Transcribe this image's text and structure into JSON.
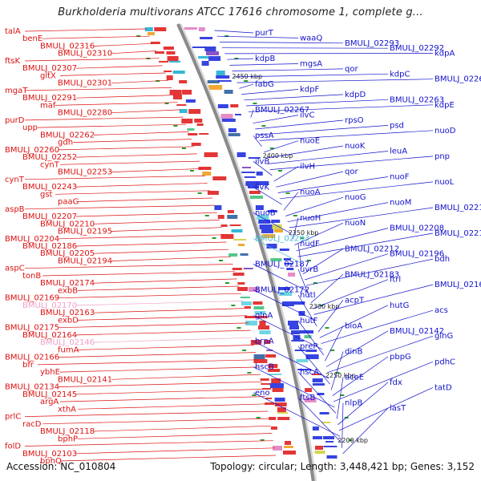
{
  "title": "Burkholderia multivorans ATCC 17616 chromosome 1, complete g...",
  "footer": {
    "accession": "Accession: NC_010804",
    "topology": "Topology: circular; Length: 3,448,421 bp; Genes: 3,152"
  },
  "colors": {
    "left_label": "#dd1111",
    "right_label": "#1111cc",
    "highlight_left": "#f0a0c8",
    "highlight_right": "#44bbdd",
    "backbone": "#8a8a8a",
    "tick": "#2a9a2a"
  },
  "kbp_labels": [
    "2450 kbp",
    "2400 kbp",
    "2350 kbp",
    "2300 kbp",
    "2250 kbp",
    "2200 kbp"
  ],
  "left_labels": [
    "talA",
    "benE",
    "BMULJ_02316",
    "BMULJ_02310",
    "ftsK",
    "BMULJ_02307",
    "gltX",
    "BMULJ_02301",
    "mgaT",
    "BMULJ_02291",
    "maf",
    "BMULJ_02280",
    "purD",
    "upp",
    "BMULJ_02262",
    "gdh",
    "BMULJ_02260",
    "BMULJ_02252",
    "cynT",
    "BMULJ_02253",
    "cynT",
    "BMULJ_02243",
    "gst",
    "paaG",
    "aspB",
    "BMULJ_02207",
    "BMULJ_02210",
    "BMULJ_02195",
    "BMULJ_02204",
    "BMULJ_02186",
    "BMULJ_02205",
    "BMULJ_02194",
    "aspC",
    "tonB",
    "BMULJ_02174",
    "exbB",
    "BMULJ_02169",
    "BMULJ_02170",
    "BMULJ_02163",
    "exbD",
    "BMULJ_02175",
    "BMULJ_02164",
    "BMULJ_02146",
    "fumA",
    "BMULJ_02166",
    "bfr",
    "ybhE",
    "BMULJ_02141",
    "BMULJ_02134",
    "BMULJ_02145",
    "argA",
    "xthA",
    "prlC",
    "racD",
    "BMULJ_02118",
    "bphP",
    "folD",
    "BMULJ_02103",
    "bphQ"
  ],
  "right_labels": [
    "purT",
    "waaQ",
    "BMULJ_02293",
    "BMULJ_02292",
    "kdpA",
    "kdpB",
    "mgsA",
    "qor",
    "kdpC",
    "BMULJ_02264",
    "fabG",
    "kdpF",
    "kdpD",
    "BMULJ_02263",
    "kdpE",
    "BMULJ_02267",
    "ilvC",
    "rpsO",
    "psd",
    "nuoD",
    "pssA",
    "nuoE",
    "nuoK",
    "leuA",
    "pnp",
    "ilvB",
    "ilvH",
    "qor",
    "nuoF",
    "nuoL",
    "ilvK",
    "nuoA",
    "nuoG",
    "nuoM",
    "BMULJ_02218",
    "nuoB",
    "nuoH",
    "nuoN",
    "BMULJ_02208",
    "BMULJ_02219",
    "BMULJ_02203",
    "nudF",
    "BMULJ_02212",
    "BMULJ_02196",
    "bdh",
    "BMULJ_02187",
    "uvrB",
    "BMULJ_02183",
    "ftrl",
    "BMULJ_02168",
    "BMULJ_02172",
    "hutI",
    "acpT",
    "hutG",
    "acs",
    "glnA",
    "hutF",
    "bioA",
    "BMULJ_02142",
    "glnG",
    "hrpA",
    "preP",
    "dinB",
    "pbpG",
    "pdhC",
    "hscB",
    "hscA",
    "aceE",
    "fdx",
    "tatD",
    "eno",
    "ftsB",
    "nlpB",
    "lasT"
  ]
}
